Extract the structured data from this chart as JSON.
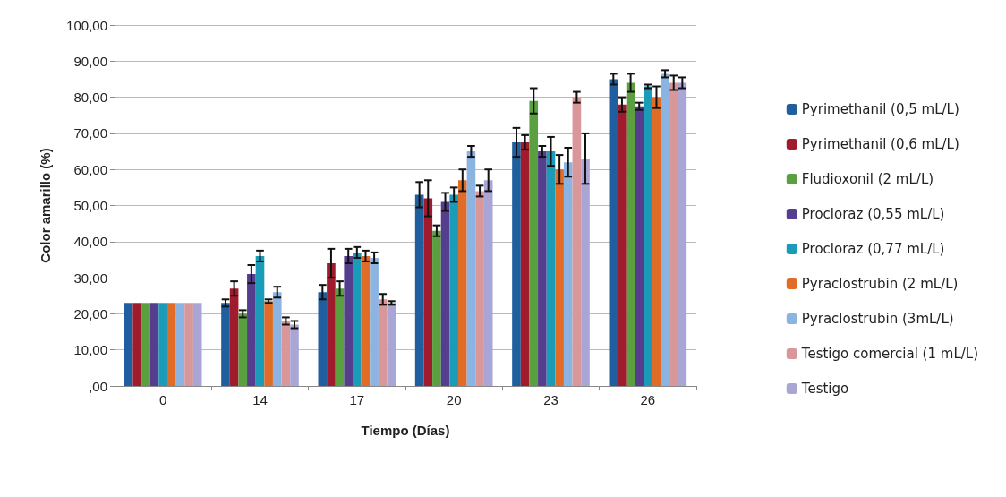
{
  "chart_data": {
    "type": "bar",
    "xlabel": "Tiempo (Días)",
    "ylabel": "Color amarillo (%)",
    "categories": [
      "0",
      "14",
      "17",
      "20",
      "23",
      "26"
    ],
    "ylim": [
      0,
      100
    ],
    "yticks": [
      {
        "value": 0,
        "label": ",00"
      },
      {
        "value": 10,
        "label": "10,00"
      },
      {
        "value": 20,
        "label": "20,00"
      },
      {
        "value": 30,
        "label": "30,00"
      },
      {
        "value": 40,
        "label": "40,00"
      },
      {
        "value": 50,
        "label": "50,00"
      },
      {
        "value": 60,
        "label": "60,00"
      },
      {
        "value": 70,
        "label": "70,00"
      },
      {
        "value": 80,
        "label": "80,00"
      },
      {
        "value": 90,
        "label": "90,00"
      },
      {
        "value": 100,
        "label": "100,00"
      }
    ],
    "grid": "y",
    "legend": "right",
    "series": [
      {
        "name": "Pyrimethanil (0,5 mL/L)",
        "color": "#1f5fa0",
        "values": [
          23,
          23,
          26,
          53,
          67.5,
          85
        ],
        "errors": [
          null,
          1,
          2,
          3.5,
          4,
          1.5
        ]
      },
      {
        "name": "Pyrimethanil (0,6 mL/L)",
        "color": "#a01c2c",
        "values": [
          23,
          27,
          34,
          52,
          67.5,
          78
        ],
        "errors": [
          null,
          2,
          4,
          5,
          2,
          2
        ]
      },
      {
        "name": "Fludioxonil (2 mL/L)",
        "color": "#5aa040",
        "values": [
          23,
          20,
          27,
          43,
          79,
          84
        ],
        "errors": [
          null,
          1,
          2,
          1.5,
          3.5,
          2.5
        ]
      },
      {
        "name": "Procloraz (0,55 mL/L)",
        "color": "#553e8e",
        "values": [
          23,
          31,
          36,
          51,
          65,
          77.5
        ],
        "errors": [
          null,
          2.5,
          2,
          2.5,
          1.5,
          1
        ]
      },
      {
        "name": "Procloraz (0,77 mL/L)",
        "color": "#1a9cb8",
        "values": [
          23,
          36,
          37,
          53,
          65,
          83
        ],
        "errors": [
          null,
          1.5,
          1.5,
          2,
          4,
          0.5
        ]
      },
      {
        "name": "Pyraclostrubin (2 mL/L)",
        "color": "#e06c28",
        "values": [
          23,
          23.5,
          36,
          57,
          60,
          80
        ],
        "errors": [
          null,
          0.5,
          1.5,
          3,
          4,
          3
        ]
      },
      {
        "name": "Pyraclostrubin (3mL/L)",
        "color": "#8cb4e2",
        "values": [
          23,
          26,
          35.5,
          65,
          62,
          86.5
        ],
        "errors": [
          null,
          1.5,
          1.5,
          1.5,
          4,
          1
        ]
      },
      {
        "name": "Testigo comercial (1 mL/L)",
        "color": "#d9979a",
        "values": [
          23,
          18,
          24,
          54,
          80,
          84
        ],
        "errors": [
          null,
          1,
          1.5,
          1.5,
          1.5,
          2
        ]
      },
      {
        "name": "Testigo",
        "color": "#a9a6d6",
        "values": [
          23,
          17,
          23,
          57,
          63,
          84
        ],
        "errors": [
          null,
          1,
          0.5,
          3,
          7,
          1.5
        ]
      }
    ]
  }
}
